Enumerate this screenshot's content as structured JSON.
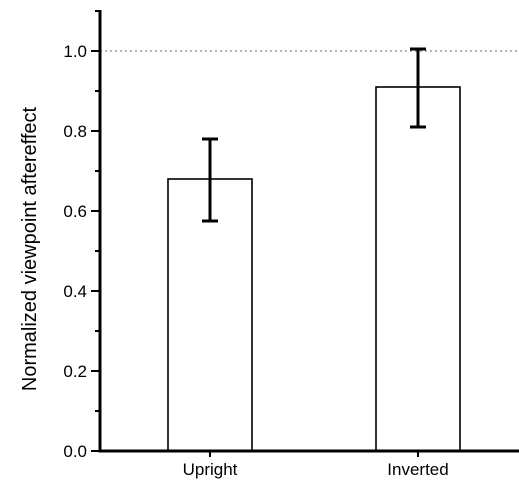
{
  "chart_data": {
    "type": "bar",
    "categories": [
      "Upright",
      "Inverted"
    ],
    "values": [
      0.68,
      0.91
    ],
    "error_low": [
      0.575,
      0.81
    ],
    "error_high": [
      0.78,
      1.005
    ],
    "xlabel": "",
    "ylabel": "Normalized viewpoint aftereffect",
    "ylim": [
      0,
      1.1
    ],
    "yticks": [
      0.0,
      0.2,
      0.4,
      0.6,
      0.8,
      1.0
    ],
    "ytick_labels": [
      "0.0",
      "0.2",
      "0.4",
      "0.6",
      "0.8",
      "1.0"
    ],
    "reference_line": 1.0,
    "grid": false,
    "legend": "none",
    "colors": {
      "bar_fill": "#ffffff",
      "bar_stroke": "#000000",
      "reference_line": "#888888"
    }
  }
}
